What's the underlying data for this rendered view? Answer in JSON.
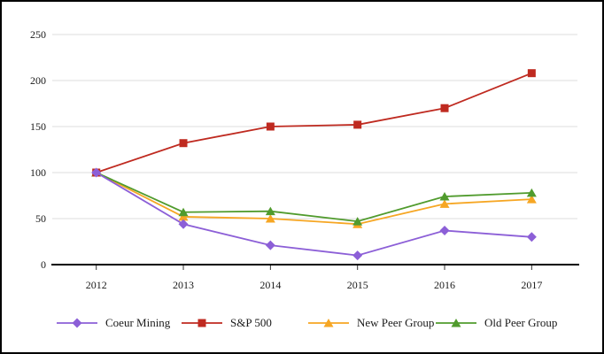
{
  "chart_data": {
    "type": "line",
    "title": "",
    "xlabel": "",
    "ylabel": "",
    "x_categories": [
      "2012",
      "2013",
      "2014",
      "2015",
      "2016",
      "2017"
    ],
    "y_ticks": [
      0,
      50,
      100,
      150,
      200,
      250
    ],
    "ylim": [
      0,
      250
    ],
    "grid": true,
    "legend_position": "bottom",
    "series": [
      {
        "name": "Coeur Mining",
        "color": "#8c5fd7",
        "marker": "diamond",
        "values": [
          100,
          44,
          21,
          10,
          37,
          30
        ]
      },
      {
        "name": "S&P 500",
        "color": "#bf2a20",
        "marker": "square",
        "values": [
          100,
          132,
          150,
          152,
          170,
          208
        ]
      },
      {
        "name": "New Peer Group",
        "color": "#f6a623",
        "marker": "triangle",
        "values": [
          100,
          52,
          50,
          44,
          66,
          71
        ]
      },
      {
        "name": "Old Peer Group",
        "color": "#509b2d",
        "marker": "triangle",
        "values": [
          100,
          57,
          58,
          47,
          74,
          78
        ]
      }
    ]
  },
  "colors": {
    "background": "#ffffff",
    "frame_border": "#000000",
    "gridline": "#dcdcdc",
    "axis": "#000000",
    "tick": "#333333",
    "text": "#1a1a1a"
  }
}
